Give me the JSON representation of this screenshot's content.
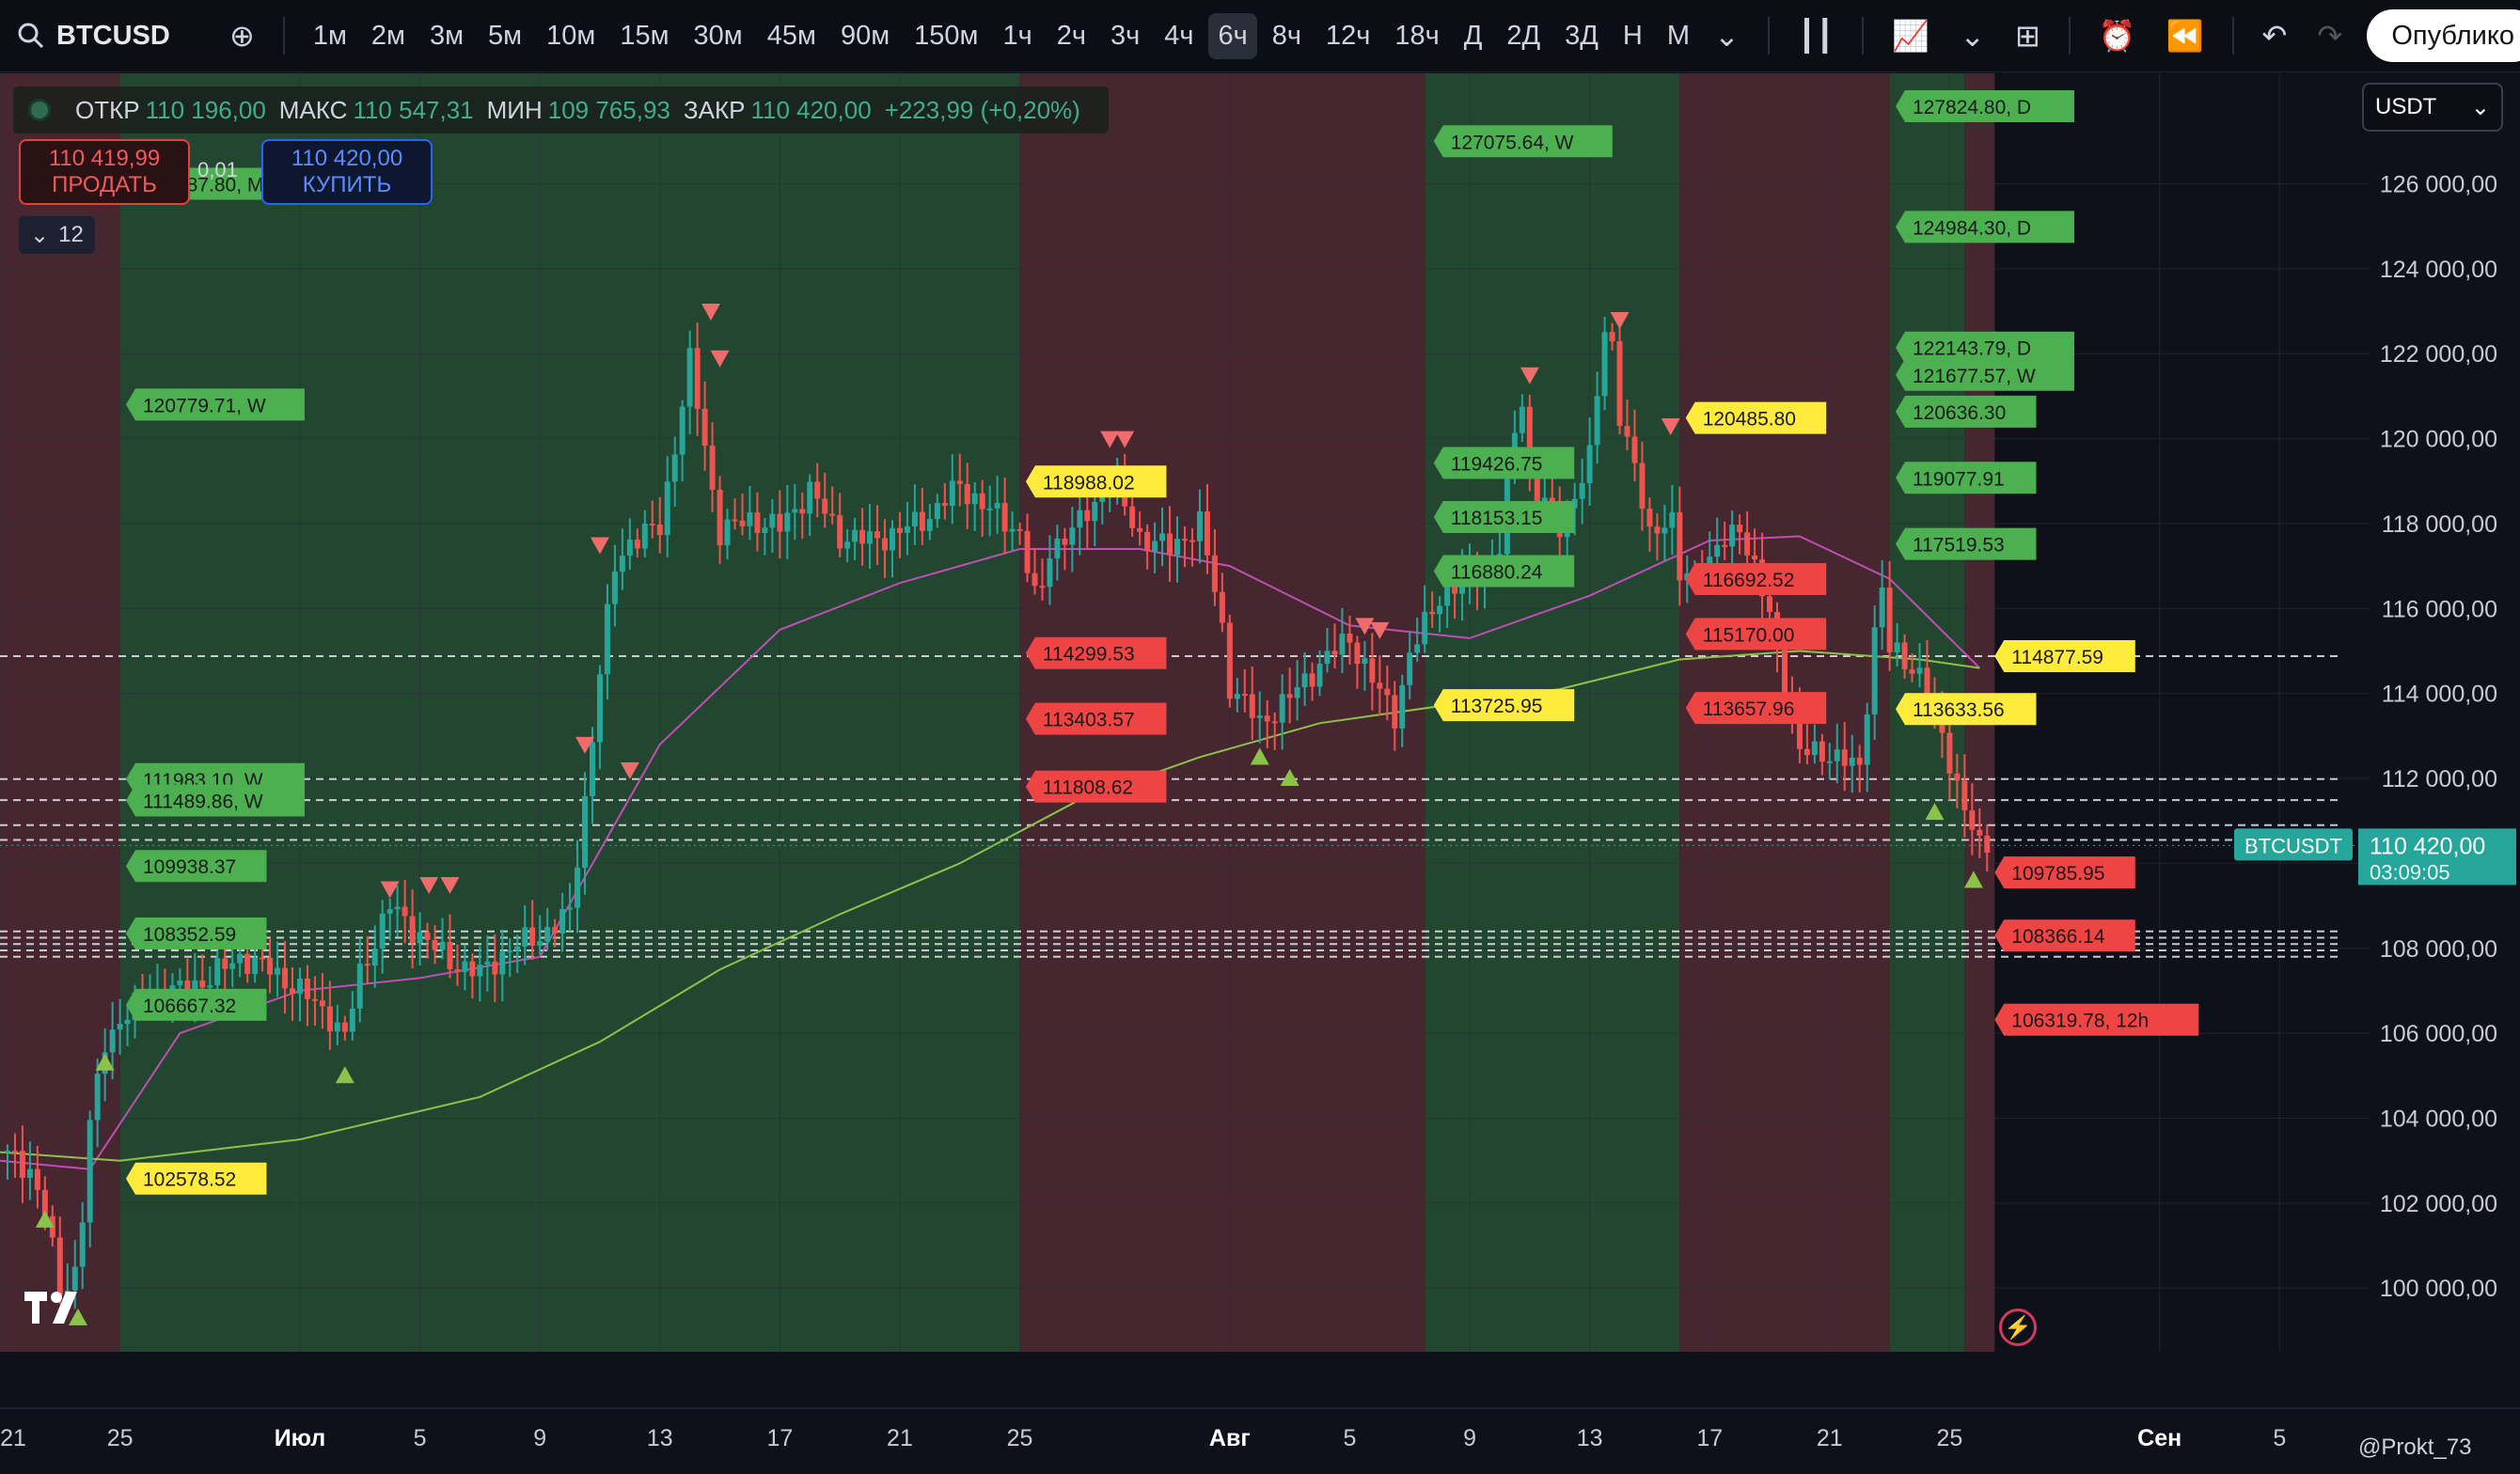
{
  "toolbar": {
    "symbol": "BTCUSD",
    "timeframes": [
      "1м",
      "2м",
      "3м",
      "5м",
      "10м",
      "15м",
      "30м",
      "45м",
      "90м",
      "150м",
      "1ч",
      "2ч",
      "3ч",
      "4ч",
      "6ч",
      "8ч",
      "12ч",
      "18ч",
      "Д",
      "2Д",
      "3Д",
      "Н",
      "М"
    ],
    "active_timeframe": "6ч",
    "publish_label": "Опублико"
  },
  "legend": {
    "open_label": "ОТКР",
    "open": "110 196,00",
    "high_label": "МАКС",
    "high": "110 547,31",
    "low_label": "МИН",
    "low": "109 765,93",
    "close_label": "ЗАКР",
    "close": "110 420,00",
    "change": "+223,99 (+0,20%)"
  },
  "trade": {
    "sell_price": "110 419,99",
    "sell_label": "ПРОДАТЬ",
    "spread": "0,01",
    "buy_price": "110 420,00",
    "buy_label": "КУПИТЬ",
    "indicator_count": "12"
  },
  "currency": "USDT",
  "credit": "@Prokt_73",
  "colors": {
    "up": "#26a69a",
    "down": "#ef5350",
    "zone_green": "#244a30",
    "zone_red": "#4a2830",
    "label_green": "#4caf50",
    "label_red": "#ef4444",
    "label_yellow": "#ffeb3b"
  },
  "chart_data": {
    "type": "candlestick",
    "interval": "6ч",
    "ylim": [
      98500,
      128600
    ],
    "y_ticks": [
      100000,
      102000,
      104000,
      106000,
      108000,
      110000,
      112000,
      114000,
      116000,
      118000,
      120000,
      122000,
      124000,
      126000
    ],
    "y_tick_labels": [
      "100 000,00",
      "102 000,00",
      "104 000,00",
      "106 000,00",
      "108 000,00",
      "110 000,00",
      "112 000,00",
      "114 000,00",
      "116 000,00",
      "118 000,00",
      "120 000,00",
      "122 000,00",
      "124 000,00",
      "126 000,00"
    ],
    "x_ticks": [
      {
        "label": "21",
        "day": 0
      },
      {
        "label": "25",
        "day": 4
      },
      {
        "label": "Июл",
        "day": 10
      },
      {
        "label": "5",
        "day": 14
      },
      {
        "label": "9",
        "day": 18
      },
      {
        "label": "13",
        "day": 22
      },
      {
        "label": "17",
        "day": 26
      },
      {
        "label": "21",
        "day": 30
      },
      {
        "label": "25",
        "day": 34
      },
      {
        "label": "Авг",
        "day": 41
      },
      {
        "label": "5",
        "day": 45
      },
      {
        "label": "9",
        "day": 49
      },
      {
        "label": "13",
        "day": 53
      },
      {
        "label": "17",
        "day": 57
      },
      {
        "label": "21",
        "day": 61
      },
      {
        "label": "25",
        "day": 65
      },
      {
        "label": "Сен",
        "day": 72
      },
      {
        "label": "5",
        "day": 76
      }
    ],
    "x_range_days": [
      0,
      79
    ],
    "last_day": 66.3,
    "close_path": [
      [
        0,
        103200
      ],
      [
        1,
        102800
      ],
      [
        1.5,
        101800
      ],
      [
        2,
        99900
      ],
      [
        2.6,
        100500
      ],
      [
        3,
        103800
      ],
      [
        3.5,
        105800
      ],
      [
        4,
        106300
      ],
      [
        5,
        106900
      ],
      [
        6,
        107000
      ],
      [
        7,
        107300
      ],
      [
        8,
        107800
      ],
      [
        9,
        107500
      ],
      [
        10,
        107000
      ],
      [
        11,
        106400
      ],
      [
        11.5,
        105900
      ],
      [
        12,
        107400
      ],
      [
        13,
        109000
      ],
      [
        14,
        108300
      ],
      [
        15,
        107700
      ],
      [
        16,
        107400
      ],
      [
        17,
        108000
      ],
      [
        18,
        108300
      ],
      [
        19,
        108800
      ],
      [
        19.5,
        111500
      ],
      [
        20,
        114500
      ],
      [
        20.5,
        117000
      ],
      [
        21,
        117600
      ],
      [
        22,
        117900
      ],
      [
        23,
        121800
      ],
      [
        23.7,
        119000
      ],
      [
        24,
        117800
      ],
      [
        25,
        118100
      ],
      [
        26,
        117900
      ],
      [
        27,
        118800
      ],
      [
        28,
        117700
      ],
      [
        29,
        117600
      ],
      [
        30,
        117800
      ],
      [
        31,
        118200
      ],
      [
        32,
        118900
      ],
      [
        33,
        118300
      ],
      [
        34,
        117800
      ],
      [
        34.6,
        115900
      ],
      [
        35,
        117400
      ],
      [
        36,
        118000
      ],
      [
        37,
        119000
      ],
      [
        38,
        117700
      ],
      [
        39,
        117400
      ],
      [
        40,
        118000
      ],
      [
        40.7,
        115800
      ],
      [
        41,
        114200
      ],
      [
        42,
        113300
      ],
      [
        43,
        113900
      ],
      [
        44,
        114700
      ],
      [
        45,
        115300
      ],
      [
        46,
        114000
      ],
      [
        46.5,
        113500
      ],
      [
        47,
        114900
      ],
      [
        48,
        116300
      ],
      [
        49,
        116700
      ],
      [
        50,
        117400
      ],
      [
        50.7,
        121300
      ],
      [
        51,
        119000
      ],
      [
        52,
        117900
      ],
      [
        53,
        119500
      ],
      [
        53.6,
        123200
      ],
      [
        54,
        120600
      ],
      [
        55,
        117800
      ],
      [
        55.7,
        118200
      ],
      [
        56,
        116700
      ],
      [
        57,
        117100
      ],
      [
        58,
        118000
      ],
      [
        59,
        115800
      ],
      [
        60,
        112600
      ],
      [
        61,
        112600
      ],
      [
        62,
        112200
      ],
      [
        62.7,
        116800
      ],
      [
        63,
        115000
      ],
      [
        64,
        114500
      ],
      [
        65,
        112400
      ],
      [
        66,
        110300
      ],
      [
        66.3,
        110420
      ]
    ],
    "ma_short": [
      [
        0,
        103000
      ],
      [
        3,
        102800
      ],
      [
        6,
        106000
      ],
      [
        10,
        107000
      ],
      [
        14,
        107300
      ],
      [
        18,
        107800
      ],
      [
        22,
        112800
      ],
      [
        26,
        115500
      ],
      [
        30,
        116600
      ],
      [
        34,
        117400
      ],
      [
        38,
        117400
      ],
      [
        41,
        117000
      ],
      [
        45,
        115600
      ],
      [
        49,
        115300
      ],
      [
        53,
        116300
      ],
      [
        57,
        117600
      ],
      [
        60,
        117700
      ],
      [
        63,
        116700
      ],
      [
        66,
        114600
      ]
    ],
    "ma_long": [
      [
        0,
        103200
      ],
      [
        4,
        103000
      ],
      [
        10,
        103500
      ],
      [
        16,
        104500
      ],
      [
        20,
        105800
      ],
      [
        24,
        107500
      ],
      [
        28,
        108800
      ],
      [
        32,
        110000
      ],
      [
        36,
        111500
      ],
      [
        40,
        112500
      ],
      [
        44,
        113300
      ],
      [
        48,
        113700
      ],
      [
        52,
        114100
      ],
      [
        56,
        114800
      ],
      [
        60,
        115000
      ],
      [
        64,
        114800
      ],
      [
        66,
        114600
      ]
    ],
    "zones": [
      {
        "start": 0,
        "end": 4,
        "color": "red"
      },
      {
        "start": 4,
        "end": 34,
        "color": "green"
      },
      {
        "start": 34,
        "end": 47.5,
        "color": "red"
      },
      {
        "start": 47.5,
        "end": 56,
        "color": "green"
      },
      {
        "start": 56,
        "end": 63,
        "color": "red"
      },
      {
        "start": 63,
        "end": 65.5,
        "color": "green"
      },
      {
        "start": 65.5,
        "end": 66.5,
        "color": "red"
      }
    ],
    "dashed_levels": [
      114877.59,
      111983.1,
      111489.86,
      110900,
      110550,
      108400,
      108250,
      108100,
      107950,
      107800
    ],
    "last_price_label": {
      "symbol": "BTCUSDT",
      "price": "110 420,00",
      "countdown": "03:09:05"
    },
    "level_labels": [
      {
        "text": "125387.80, M",
        "day": 4.2,
        "price": 126000,
        "color": "green"
      },
      {
        "text": "120779.71, W",
        "day": 4.2,
        "price": 120800,
        "color": "green"
      },
      {
        "text": "111983.10, W",
        "day": 4.2,
        "price": 111983,
        "color": "green"
      },
      {
        "text": "111489.86, W",
        "day": 4.2,
        "price": 111480,
        "color": "green"
      },
      {
        "text": "109938.37",
        "day": 4.2,
        "price": 109938,
        "color": "green"
      },
      {
        "text": "108352.59",
        "day": 4.2,
        "price": 108350,
        "color": "green"
      },
      {
        "text": "106667.32",
        "day": 4.2,
        "price": 106670,
        "color": "green"
      },
      {
        "text": "102578.52",
        "day": 4.2,
        "price": 102578,
        "color": "yellow"
      },
      {
        "text": "118988.02",
        "day": 34.2,
        "price": 118988,
        "color": "yellow"
      },
      {
        "text": "114299.53",
        "day": 34.2,
        "price": 114950,
        "color": "red"
      },
      {
        "text": "113403.57",
        "day": 34.2,
        "price": 113403,
        "color": "red"
      },
      {
        "text": "111808.62",
        "day": 34.2,
        "price": 111808,
        "color": "red"
      },
      {
        "text": "127075.64, W",
        "day": 47.8,
        "price": 127000,
        "color": "green"
      },
      {
        "text": "119426.75",
        "day": 47.8,
        "price": 119426,
        "color": "green"
      },
      {
        "text": "118153.15",
        "day": 47.8,
        "price": 118153,
        "color": "green"
      },
      {
        "text": "116880.24",
        "day": 47.8,
        "price": 116880,
        "color": "green"
      },
      {
        "text": "113725.95",
        "day": 47.8,
        "price": 113725,
        "color": "yellow"
      },
      {
        "text": "120485.80",
        "day": 56.2,
        "price": 120485,
        "color": "yellow"
      },
      {
        "text": "116692.52",
        "day": 56.2,
        "price": 116692,
        "color": "red"
      },
      {
        "text": "115170.00",
        "day": 56.2,
        "price": 115400,
        "color": "red"
      },
      {
        "text": "113657.96",
        "day": 56.2,
        "price": 113657,
        "color": "red"
      },
      {
        "text": "127824.80, D",
        "day": 63.2,
        "price": 127825,
        "color": "green"
      },
      {
        "text": "124984.30, D",
        "day": 63.2,
        "price": 124984,
        "color": "green"
      },
      {
        "text": "122143.79, D",
        "day": 63.2,
        "price": 122143,
        "color": "green"
      },
      {
        "text": "121677.57, W",
        "day": 63.2,
        "price": 121500,
        "color": "green"
      },
      {
        "text": "120636.30",
        "day": 63.2,
        "price": 120636,
        "color": "green"
      },
      {
        "text": "119077.91",
        "day": 63.2,
        "price": 119077,
        "color": "green"
      },
      {
        "text": "117519.53",
        "day": 63.2,
        "price": 117519,
        "color": "green"
      },
      {
        "text": "114877.59",
        "day": 66.5,
        "price": 114877,
        "color": "yellow"
      },
      {
        "text": "113633.56",
        "day": 63.2,
        "price": 113633,
        "color": "yellow"
      },
      {
        "text": "109785.95",
        "day": 66.5,
        "price": 109785,
        "color": "red"
      },
      {
        "text": "108366.14",
        "day": 66.5,
        "price": 108300,
        "color": "red"
      },
      {
        "text": "106319.78, 12h",
        "day": 66.5,
        "price": 106319,
        "color": "red"
      }
    ],
    "markers_up": [
      [
        1.5,
        101600
      ],
      [
        2.6,
        99300
      ],
      [
        3.5,
        105300
      ],
      [
        11.5,
        105000
      ],
      [
        42,
        112500
      ],
      [
        43,
        112000
      ],
      [
        64.5,
        111200
      ],
      [
        65.8,
        109600
      ]
    ],
    "markers_down": [
      [
        23.7,
        123000
      ],
      [
        24,
        121900
      ],
      [
        20,
        117500
      ],
      [
        19.5,
        112800
      ],
      [
        21,
        112200
      ],
      [
        13,
        109400
      ],
      [
        14.3,
        109500
      ],
      [
        15,
        109500
      ],
      [
        37,
        120000
      ],
      [
        37.5,
        120000
      ],
      [
        45.5,
        115600
      ],
      [
        46,
        115500
      ],
      [
        51,
        121500
      ],
      [
        54,
        122800
      ],
      [
        55.7,
        120300
      ]
    ]
  }
}
